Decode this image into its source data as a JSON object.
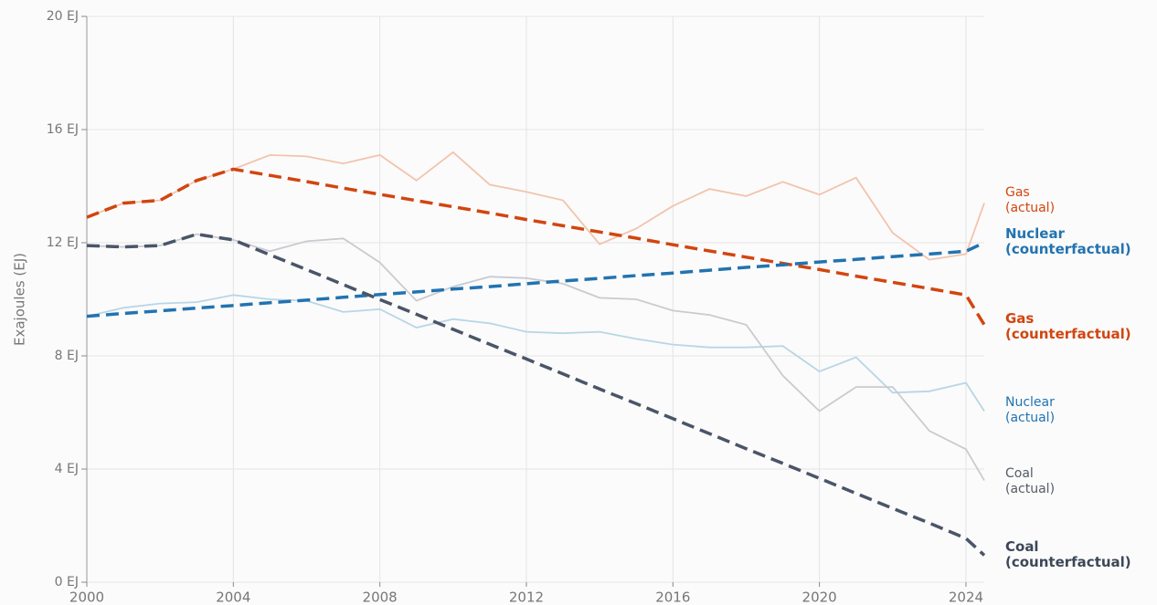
{
  "chart_data": {
    "type": "line",
    "ylabel": "Exajoules (EJ)",
    "x": [
      2000,
      2001,
      2002,
      2003,
      2004,
      2005,
      2006,
      2007,
      2008,
      2009,
      2010,
      2011,
      2012,
      2013,
      2014,
      2015,
      2016,
      2017,
      2018,
      2019,
      2020,
      2021,
      2022,
      2023,
      2024,
      2024.5
    ],
    "xlim": [
      2000,
      2024.5
    ],
    "xticks": [
      2000,
      2004,
      2008,
      2012,
      2016,
      2020,
      2024
    ],
    "ylim": [
      0,
      20
    ],
    "yticks": [
      {
        "value": 0,
        "label": "0 EJ"
      },
      {
        "value": 4,
        "label": "4 EJ"
      },
      {
        "value": 8,
        "label": "8 EJ"
      },
      {
        "value": 12,
        "label": "12 EJ"
      },
      {
        "value": 16,
        "label": "16 EJ"
      },
      {
        "value": 20,
        "label": "20 EJ"
      }
    ],
    "grid": true,
    "series": [
      {
        "name": "Gas (actual)",
        "color": "#f2c4ad",
        "label_color": "#d2450f",
        "dashed": false,
        "bold": false,
        "values": [
          12.9,
          13.4,
          13.5,
          14.2,
          14.6,
          15.1,
          15.05,
          14.8,
          15.1,
          14.2,
          15.2,
          14.05,
          13.8,
          13.5,
          11.95,
          12.5,
          13.3,
          13.9,
          13.65,
          14.15,
          13.7,
          14.3,
          12.35,
          11.4,
          11.6,
          13.4
        ]
      },
      {
        "name": "Gas (counterfactual)",
        "color": "#d2450f",
        "label_color": "#d2450f",
        "dashed": true,
        "bold": true,
        "values": [
          12.9,
          13.4,
          13.5,
          14.2,
          14.6,
          14.38,
          14.16,
          13.93,
          13.71,
          13.49,
          13.27,
          13.05,
          12.82,
          12.6,
          12.38,
          12.16,
          11.93,
          11.71,
          11.49,
          11.27,
          11.05,
          10.82,
          10.6,
          10.38,
          10.15,
          9.1
        ]
      },
      {
        "name": "Nuclear (actual)",
        "color": "#b8d6e6",
        "label_color": "#2273b0",
        "dashed": false,
        "bold": false,
        "values": [
          9.4,
          9.7,
          9.85,
          9.9,
          10.15,
          10.0,
          9.95,
          9.55,
          9.65,
          9.0,
          9.3,
          9.15,
          8.85,
          8.8,
          8.85,
          8.6,
          8.4,
          8.3,
          8.3,
          8.35,
          7.45,
          7.95,
          6.7,
          6.75,
          7.05,
          6.05
        ]
      },
      {
        "name": "Nuclear (counterfactual)",
        "color": "#2273b0",
        "label_color": "#2273b0",
        "dashed": true,
        "bold": true,
        "values": [
          9.4,
          9.5,
          9.59,
          9.69,
          9.78,
          9.88,
          9.97,
          10.07,
          10.17,
          10.26,
          10.36,
          10.45,
          10.55,
          10.65,
          10.74,
          10.84,
          10.93,
          11.03,
          11.13,
          11.22,
          11.32,
          11.41,
          11.51,
          11.6,
          11.7,
          12.0
        ]
      },
      {
        "name": "Coal (actual)",
        "color": "#c9cbd0",
        "label_color": "#555b66",
        "dashed": false,
        "bold": false,
        "values": [
          11.9,
          11.85,
          11.9,
          12.3,
          12.1,
          11.7,
          12.05,
          12.15,
          11.3,
          9.95,
          10.45,
          10.8,
          10.75,
          10.55,
          10.05,
          10.0,
          9.6,
          9.45,
          9.1,
          7.3,
          6.05,
          6.9,
          6.9,
          5.35,
          4.7,
          3.6
        ]
      },
      {
        "name": "Coal (counterfactual)",
        "color": "#4a5568",
        "label_color": "#3d4758",
        "dashed": true,
        "bold": true,
        "values": [
          11.9,
          11.85,
          11.9,
          12.3,
          12.1,
          11.57,
          11.05,
          10.52,
          9.99,
          9.47,
          8.94,
          8.41,
          7.89,
          7.36,
          6.83,
          6.31,
          5.78,
          5.25,
          4.72,
          4.2,
          3.67,
          3.14,
          2.61,
          2.09,
          1.55,
          0.95
        ]
      }
    ]
  }
}
